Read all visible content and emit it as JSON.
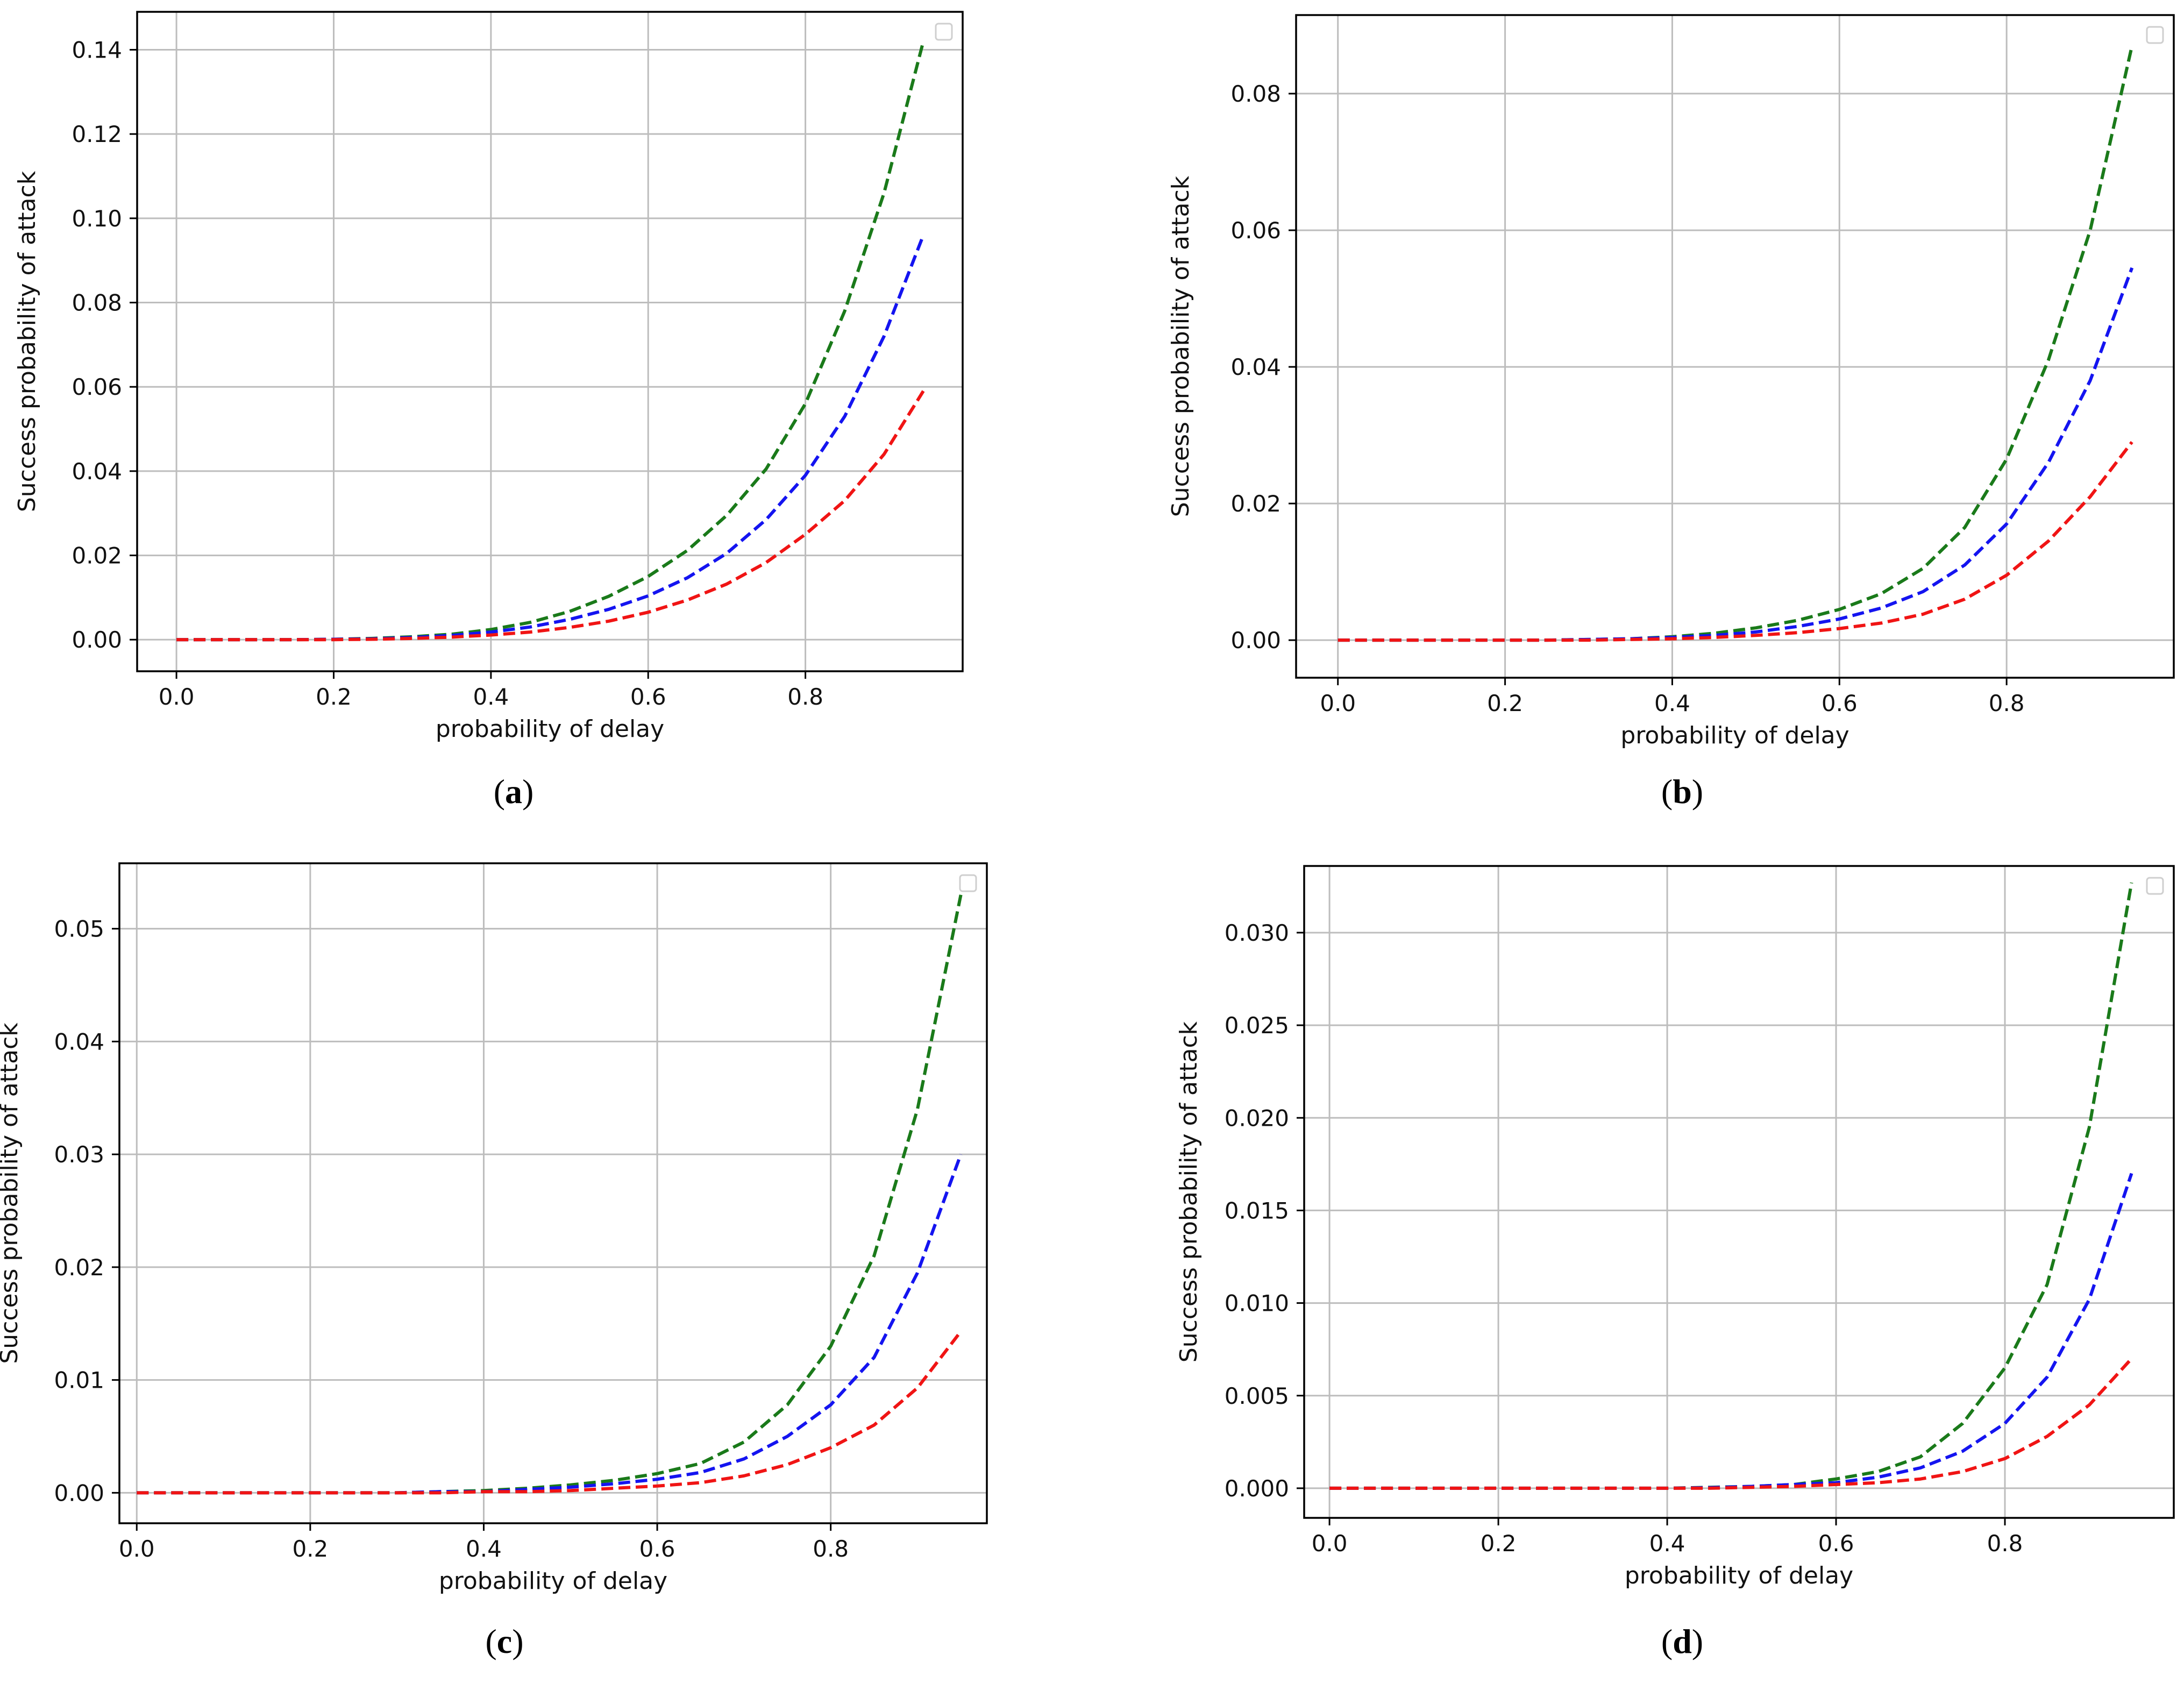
{
  "colors": {
    "green": "#1a7a1a",
    "blue": "#1414f0",
    "red": "#f01414",
    "grid": "#bdbdbd",
    "axis": "#000000"
  },
  "chart_data": [
    {
      "type": "line",
      "label": "a",
      "caption_open": "(",
      "caption_close": ")",
      "xlabel": "probability of delay",
      "ylabel": "Success probability of attack",
      "xlim": [
        -0.05,
        1.0
      ],
      "ylim": [
        -0.0075,
        0.149
      ],
      "xticks": [
        0.0,
        0.2,
        0.4,
        0.6,
        0.8
      ],
      "xtick_labels": [
        "0.0",
        "0.2",
        "0.4",
        "0.6",
        "0.8"
      ],
      "yticks": [
        0.0,
        0.02,
        0.04,
        0.06,
        0.08,
        0.1,
        0.12,
        0.14
      ],
      "ytick_labels": [
        "0.00",
        "0.02",
        "0.04",
        "0.06",
        "0.08",
        "0.10",
        "0.12",
        "0.14"
      ],
      "x": [
        0.0,
        0.05,
        0.1,
        0.15,
        0.2,
        0.25,
        0.3,
        0.35,
        0.4,
        0.45,
        0.5,
        0.55,
        0.6,
        0.65,
        0.7,
        0.75,
        0.8,
        0.85,
        0.9,
        0.95
      ],
      "series": [
        {
          "name": "green",
          "values": [
            0.0,
            0.0,
            0.0,
            0.0,
            0.0001,
            0.0003,
            0.0007,
            0.0013,
            0.0024,
            0.0041,
            0.0067,
            0.0103,
            0.015,
            0.0212,
            0.0295,
            0.0405,
            0.056,
            0.078,
            0.106,
            0.142
          ]
        },
        {
          "name": "blue",
          "values": [
            0.0,
            0.0,
            0.0,
            0.0,
            0.0001,
            0.0002,
            0.0005,
            0.001,
            0.0018,
            0.003,
            0.0048,
            0.0072,
            0.0104,
            0.0147,
            0.0205,
            0.0285,
            0.039,
            0.053,
            0.072,
            0.096
          ]
        },
        {
          "name": "red",
          "values": [
            0.0,
            0.0,
            0.0,
            0.0,
            0.0,
            0.0001,
            0.0003,
            0.0006,
            0.0011,
            0.0018,
            0.0029,
            0.0044,
            0.0065,
            0.0094,
            0.0132,
            0.0183,
            0.025,
            0.033,
            0.044,
            0.059
          ]
        }
      ]
    },
    {
      "type": "line",
      "label": "b",
      "caption_open": "(",
      "caption_close": ")",
      "xlabel": "probability of delay",
      "ylabel": "Success probability of attack",
      "xlim": [
        -0.05,
        1.0
      ],
      "ylim": [
        -0.0055,
        0.0915
      ],
      "xticks": [
        0.0,
        0.2,
        0.4,
        0.6,
        0.8
      ],
      "xtick_labels": [
        "0.0",
        "0.2",
        "0.4",
        "0.6",
        "0.8"
      ],
      "yticks": [
        0.0,
        0.02,
        0.04,
        0.06,
        0.08
      ],
      "ytick_labels": [
        "0.00",
        "0.02",
        "0.04",
        "0.06",
        "0.08"
      ],
      "x": [
        0.0,
        0.05,
        0.1,
        0.15,
        0.2,
        0.25,
        0.3,
        0.35,
        0.4,
        0.45,
        0.5,
        0.55,
        0.6,
        0.65,
        0.7,
        0.75,
        0.8,
        0.85,
        0.9,
        0.95
      ],
      "series": [
        {
          "name": "green",
          "values": [
            0.0,
            0.0,
            0.0,
            0.0,
            0.0,
            0.0,
            0.0001,
            0.0002,
            0.0005,
            0.001,
            0.0018,
            0.0029,
            0.0045,
            0.0068,
            0.0105,
            0.0165,
            0.0265,
            0.041,
            0.06,
            0.087
          ]
        },
        {
          "name": "blue",
          "values": [
            0.0,
            0.0,
            0.0,
            0.0,
            0.0,
            0.0,
            0.0001,
            0.0002,
            0.0004,
            0.0007,
            0.0012,
            0.002,
            0.0031,
            0.0047,
            0.0071,
            0.011,
            0.017,
            0.026,
            0.038,
            0.0545
          ]
        },
        {
          "name": "red",
          "values": [
            0.0,
            0.0,
            0.0,
            0.0,
            0.0,
            0.0,
            0.0,
            0.0001,
            0.0002,
            0.0004,
            0.0007,
            0.0011,
            0.0017,
            0.0025,
            0.0038,
            0.006,
            0.0095,
            0.0145,
            0.021,
            0.029
          ]
        }
      ]
    },
    {
      "type": "line",
      "label": "c",
      "caption_open": "(",
      "caption_close": ")",
      "xlabel": "probability of delay",
      "ylabel": "Success probability of attack",
      "xlim": [
        -0.02,
        0.98
      ],
      "ylim": [
        -0.0027,
        0.0558
      ],
      "xticks": [
        0.0,
        0.2,
        0.4,
        0.6,
        0.8
      ],
      "xtick_labels": [
        "0.0",
        "0.2",
        "0.4",
        "0.6",
        "0.8"
      ],
      "yticks": [
        0.0,
        0.01,
        0.02,
        0.03,
        0.04,
        0.05
      ],
      "ytick_labels": [
        "0.00",
        "0.01",
        "0.02",
        "0.03",
        "0.04",
        "0.05"
      ],
      "x": [
        0.0,
        0.05,
        0.1,
        0.15,
        0.2,
        0.25,
        0.3,
        0.35,
        0.4,
        0.45,
        0.5,
        0.55,
        0.6,
        0.65,
        0.7,
        0.75,
        0.8,
        0.85,
        0.9,
        0.95
      ],
      "series": [
        {
          "name": "green",
          "values": [
            0.0,
            0.0,
            0.0,
            0.0,
            0.0,
            0.0,
            0.0,
            0.0001,
            0.0002,
            0.0004,
            0.0007,
            0.0011,
            0.0017,
            0.0026,
            0.0045,
            0.0078,
            0.013,
            0.021,
            0.034,
            0.053
          ]
        },
        {
          "name": "blue",
          "values": [
            0.0,
            0.0,
            0.0,
            0.0,
            0.0,
            0.0,
            0.0,
            0.0001,
            0.0001,
            0.0003,
            0.0005,
            0.0008,
            0.0012,
            0.0018,
            0.003,
            0.005,
            0.0078,
            0.012,
            0.0195,
            0.03
          ]
        },
        {
          "name": "red",
          "values": [
            0.0,
            0.0,
            0.0,
            0.0,
            0.0,
            0.0,
            0.0,
            0.0,
            0.0001,
            0.0001,
            0.0002,
            0.0004,
            0.0006,
            0.0009,
            0.0015,
            0.0025,
            0.004,
            0.006,
            0.0093,
            0.0143
          ]
        }
      ]
    },
    {
      "type": "line",
      "label": "d",
      "caption_open": "(",
      "caption_close": ")",
      "xlabel": "probability of delay",
      "ylabel": "Success probability of attack",
      "xlim": [
        -0.03,
        1.0
      ],
      "ylim": [
        -0.0016,
        0.0336
      ],
      "xticks": [
        0.0,
        0.2,
        0.4,
        0.6,
        0.8
      ],
      "xtick_labels": [
        "0.0",
        "0.2",
        "0.4",
        "0.6",
        "0.8"
      ],
      "yticks": [
        0.0,
        0.005,
        0.01,
        0.015,
        0.02,
        0.025,
        0.03
      ],
      "ytick_labels": [
        "0.000",
        "0.005",
        "0.010",
        "0.015",
        "0.020",
        "0.025",
        "0.030"
      ],
      "x": [
        0.0,
        0.05,
        0.1,
        0.15,
        0.2,
        0.25,
        0.3,
        0.35,
        0.4,
        0.45,
        0.5,
        0.55,
        0.6,
        0.65,
        0.7,
        0.75,
        0.8,
        0.85,
        0.9,
        0.95
      ],
      "series": [
        {
          "name": "green",
          "values": [
            0.0,
            0.0,
            0.0,
            0.0,
            0.0,
            0.0,
            0.0,
            0.0,
            0.0,
            5e-05,
            0.0001,
            0.0002,
            0.0005,
            0.0009,
            0.0017,
            0.0035,
            0.0065,
            0.011,
            0.0195,
            0.0327
          ]
        },
        {
          "name": "blue",
          "values": [
            0.0,
            0.0,
            0.0,
            0.0,
            0.0,
            0.0,
            0.0,
            0.0,
            0.0,
            3e-05,
            0.0001,
            0.0002,
            0.0003,
            0.0006,
            0.0011,
            0.002,
            0.0035,
            0.006,
            0.0102,
            0.017
          ]
        },
        {
          "name": "red",
          "values": [
            0.0,
            0.0,
            0.0,
            0.0,
            0.0,
            0.0,
            0.0,
            0.0,
            0.0,
            0.0,
            5e-05,
            0.0001,
            0.0002,
            0.0003,
            0.0005,
            0.0009,
            0.0016,
            0.0028,
            0.0045,
            0.007
          ]
        }
      ]
    }
  ]
}
